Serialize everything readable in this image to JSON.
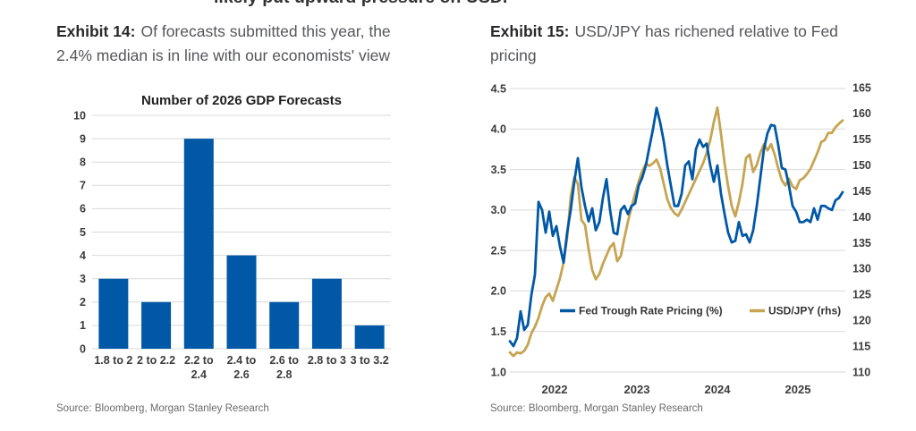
{
  "page": {
    "clipped_top_text": "likely put upward pressure on USD."
  },
  "colors": {
    "brand_blue": "#0058A6",
    "gold": "#C6A451",
    "gridline": "#D9D9D9",
    "tick_text": "#3C3C3C",
    "caption_bold": "#29292B",
    "caption_gray": "#55565A",
    "source_gray": "#6A6A6A"
  },
  "exhibit14": {
    "label": "Exhibit 14:",
    "title": "Of forecasts submitted this year, the 2.4% median is in line with our economists' view",
    "title_line1": "Of forecasts submitted this year, the",
    "title_line2": "2.4% median is in line with our economists' view",
    "source": "Source: Bloomberg, Morgan Stanley Research",
    "chart_data": {
      "type": "bar",
      "title": "Number of 2026 GDP Forecasts",
      "categories": [
        "1.8 to 2",
        "2 to 2.2",
        "2.2 to 2.4",
        "2.4 to 2.6",
        "2.6 to 2.8",
        "2.8 to 3",
        "3 to 3.2"
      ],
      "values": [
        3,
        2,
        9,
        4,
        2,
        3,
        1
      ],
      "xlabel": "",
      "ylabel": "",
      "ylim": [
        0,
        10
      ],
      "y_ticks": [
        0,
        1,
        2,
        3,
        4,
        5,
        6,
        7,
        8,
        9,
        10
      ],
      "grid": true,
      "bar_color": "#0058A6"
    }
  },
  "exhibit15": {
    "label": "Exhibit 15:",
    "title": "USD/JPY has richened relative to Fed pricing",
    "title_line1": "USD/JPY has richened relative to Fed",
    "title_line2": "pricing",
    "source": "Source: Bloomberg, Morgan Stanley Research",
    "chart_data": {
      "type": "line",
      "title": "",
      "x_ticks": [
        "2022",
        "2023",
        "2024",
        "2025"
      ],
      "x_range_years": [
        2021.96,
        2026.0
      ],
      "grid": true,
      "legend_position": "inside-lower-center",
      "left_axis": {
        "range": [
          1.0,
          4.5
        ],
        "ticks": [
          "4.5",
          "4.0",
          "3.5",
          "3.0",
          "2.5",
          "2.0",
          "1.5",
          "1.0"
        ]
      },
      "right_axis": {
        "range": [
          110,
          165
        ],
        "ticks": [
          165,
          160,
          155,
          150,
          145,
          140,
          135,
          130,
          125,
          120,
          115,
          110
        ]
      },
      "series": [
        {
          "name": "Fed Trough Rate Pricing (%)",
          "axis": "left",
          "color": "#0058A6",
          "values": [
            1.38,
            1.32,
            1.42,
            1.75,
            1.52,
            1.58,
            1.95,
            2.2,
            3.1,
            3.0,
            2.72,
            2.98,
            2.68,
            2.8,
            2.55,
            2.35,
            2.72,
            3.0,
            3.35,
            3.64,
            3.28,
            3.05,
            2.86,
            3.02,
            2.75,
            2.85,
            3.15,
            3.38,
            3.0,
            2.72,
            2.7,
            3.0,
            3.05,
            2.95,
            3.05,
            3.08,
            3.3,
            3.4,
            3.55,
            3.78,
            4.0,
            4.26,
            4.08,
            3.85,
            3.55,
            3.3,
            3.05,
            3.05,
            3.2,
            3.55,
            3.6,
            3.38,
            3.75,
            3.87,
            3.78,
            3.82,
            3.55,
            3.35,
            3.55,
            3.2,
            2.95,
            2.72,
            2.6,
            2.62,
            2.85,
            2.68,
            2.7,
            2.6,
            2.75,
            3.05,
            3.4,
            3.75,
            3.95,
            4.05,
            4.04,
            3.8,
            3.52,
            3.5,
            3.3,
            3.05,
            2.98,
            2.85,
            2.85,
            2.88,
            2.85,
            3.02,
            2.88,
            3.05,
            3.05,
            3.02,
            3.0,
            3.12,
            3.15,
            3.22
          ]
        },
        {
          "name": "USD/JPY (rhs)",
          "axis": "right",
          "color": "#C6A451",
          "values": [
            113.8,
            113.1,
            113.8,
            113.6,
            114.1,
            115.3,
            117.5,
            118.8,
            120.5,
            122.8,
            124.5,
            125.2,
            123.8,
            126.0,
            128.2,
            131.2,
            136.0,
            144.0,
            147.8,
            146.5,
            139.5,
            138.5,
            133.8,
            129.8,
            128.0,
            129.0,
            131.0,
            132.6,
            134.2,
            135.0,
            131.5,
            132.5,
            136.0,
            139.2,
            142.0,
            144.6,
            147.0,
            149.0,
            150.4,
            150.0,
            150.5,
            151.2,
            149.5,
            146.5,
            143.5,
            141.8,
            140.8,
            140.3,
            141.5,
            143.0,
            144.5,
            146.0,
            147.5,
            149.0,
            150.5,
            152.5,
            155.0,
            158.5,
            161.3,
            156.2,
            150.5,
            146.0,
            142.2,
            140.2,
            143.0,
            146.5,
            151.5,
            152.2,
            148.8,
            150.2,
            152.5,
            154.2,
            153.0,
            154.2,
            152.2,
            149.5,
            147.2,
            146.2,
            147.5,
            146.0,
            145.5,
            147.2,
            147.6,
            148.4,
            149.4,
            151.0,
            152.6,
            154.6,
            155.0,
            156.4,
            156.4,
            157.5,
            158.2,
            158.8
          ]
        }
      ]
    }
  }
}
